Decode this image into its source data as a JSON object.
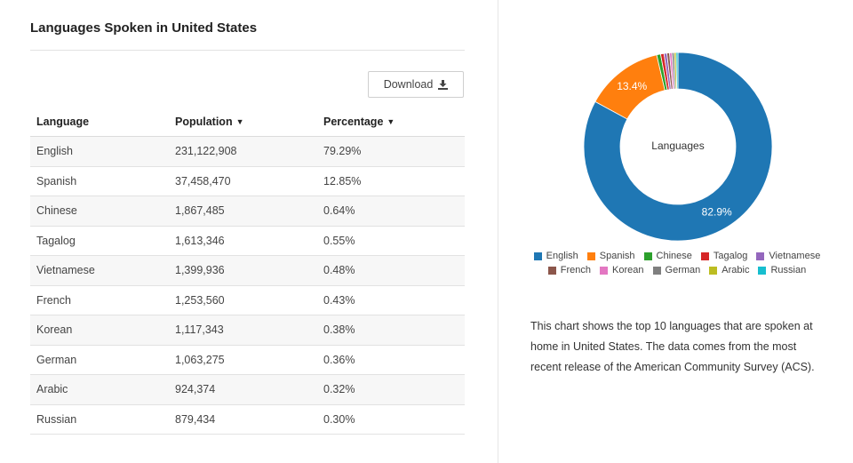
{
  "page": {
    "title": "Languages Spoken in United States",
    "download_label": "Download"
  },
  "table": {
    "headers": {
      "language": "Language",
      "population": "Population",
      "percentage": "Percentage"
    },
    "rows": [
      {
        "language": "English",
        "population": "231,122,908",
        "percentage": "79.29%"
      },
      {
        "language": "Spanish",
        "population": "37,458,470",
        "percentage": "12.85%"
      },
      {
        "language": "Chinese",
        "population": "1,867,485",
        "percentage": "0.64%"
      },
      {
        "language": "Tagalog",
        "population": "1,613,346",
        "percentage": "0.55%"
      },
      {
        "language": "Vietnamese",
        "population": "1,399,936",
        "percentage": "0.48%"
      },
      {
        "language": "French",
        "population": "1,253,560",
        "percentage": "0.43%"
      },
      {
        "language": "Korean",
        "population": "1,117,343",
        "percentage": "0.38%"
      },
      {
        "language": "German",
        "population": "1,063,275",
        "percentage": "0.36%"
      },
      {
        "language": "Arabic",
        "population": "924,374",
        "percentage": "0.32%"
      },
      {
        "language": "Russian",
        "population": "879,434",
        "percentage": "0.30%"
      }
    ]
  },
  "chart_data": {
    "type": "pie",
    "donut": true,
    "center_label": "Languages",
    "legend_position": "bottom",
    "slices": [
      {
        "name": "English",
        "value": 231122908,
        "label": "82.9%",
        "color": "#1f77b4"
      },
      {
        "name": "Spanish",
        "value": 37458470,
        "label": "13.4%",
        "color": "#ff7f0e"
      },
      {
        "name": "Chinese",
        "value": 1867485,
        "label": "",
        "color": "#2ca02c"
      },
      {
        "name": "Tagalog",
        "value": 1613346,
        "label": "",
        "color": "#d62728"
      },
      {
        "name": "Vietnamese",
        "value": 1399936,
        "label": "",
        "color": "#9467bd"
      },
      {
        "name": "French",
        "value": 1253560,
        "label": "",
        "color": "#8c564b"
      },
      {
        "name": "Korean",
        "value": 1117343,
        "label": "",
        "color": "#e377c2"
      },
      {
        "name": "German",
        "value": 1063275,
        "label": "",
        "color": "#7f7f7f"
      },
      {
        "name": "Arabic",
        "value": 924374,
        "label": "",
        "color": "#bcbd22"
      },
      {
        "name": "Russian",
        "value": 879434,
        "label": "",
        "color": "#17becf"
      }
    ]
  },
  "description": "This chart shows the top 10 languages that are spoken at home in United States. The data comes from the most recent release of the American Community Survey (ACS)."
}
